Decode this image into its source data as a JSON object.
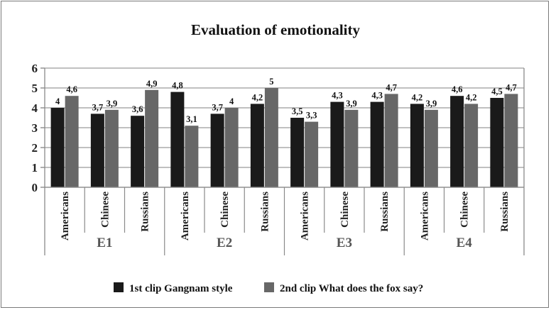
{
  "chart_data": {
    "type": "bar",
    "title": "Evaluation of emotionality",
    "groups": [
      "E1",
      "E2",
      "E3",
      "E4"
    ],
    "subcategories": [
      "Americans",
      "Chinese",
      "Russians"
    ],
    "categories": [
      "Americans",
      "Chinese",
      "Russians",
      "Americans",
      "Chinese",
      "Russians",
      "Americans",
      "Chinese",
      "Russians",
      "Americans",
      "Chinese",
      "Russians"
    ],
    "series": [
      {
        "name": "1st clip Gangnam style",
        "color": "#1a1a1a",
        "values": [
          4,
          3.7,
          3.6,
          4.8,
          3.7,
          4.2,
          3.5,
          4.3,
          4.3,
          4.2,
          4.6,
          4.5
        ],
        "labels": [
          "4",
          "3,7",
          "3,6",
          "4,8",
          "3,7",
          "4,2",
          "3,5",
          "4,3",
          "4,3",
          "4,2",
          "4,6",
          "4,5"
        ]
      },
      {
        "name": "2nd clip What does the fox say?",
        "color": "#676767",
        "values": [
          4.6,
          3.9,
          4.9,
          3.1,
          4,
          5,
          3.3,
          3.9,
          4.7,
          3.9,
          4.2,
          4.7
        ],
        "labels": [
          "4,6",
          "3,9",
          "4,9",
          "3,1",
          "4",
          "5",
          "3,3",
          "3,9",
          "4,7",
          "3,9",
          "4,2",
          "4,7"
        ]
      }
    ],
    "ylim": [
      0,
      6
    ],
    "yticks": [
      "0",
      "1",
      "2",
      "3",
      "4",
      "5",
      "6"
    ],
    "grid": true,
    "legend_position": "bottom"
  }
}
